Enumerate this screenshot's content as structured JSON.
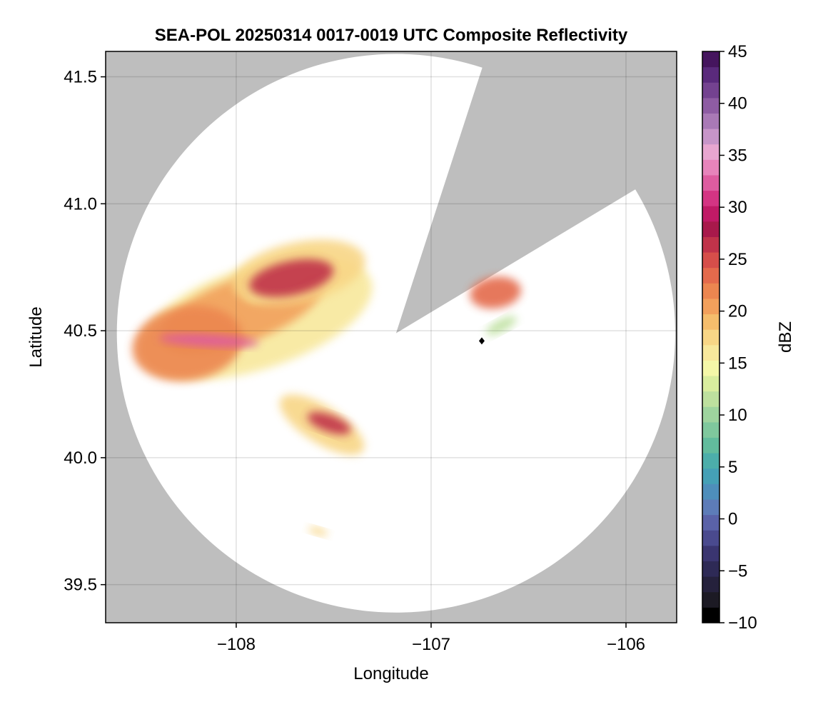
{
  "chart_data": {
    "type": "heatmap",
    "title": "SEA-POL 20250314 0017-0019 UTC Composite Reflectivity",
    "xlabel": "Longitude",
    "ylabel": "Latitude",
    "xlim": [
      -108.67,
      -105.74
    ],
    "ylim": [
      39.35,
      41.6
    ],
    "x_ticks": [
      -108,
      -107,
      -106
    ],
    "x_tick_labels": [
      "−108",
      "−107",
      "−106"
    ],
    "y_ticks": [
      39.5,
      40.0,
      40.5,
      41.0,
      41.5
    ],
    "y_tick_labels": [
      "39.5",
      "40.0",
      "40.5",
      "41.0",
      "41.5"
    ],
    "grid": true,
    "no_data_color": "#bebebe",
    "radar": {
      "center_lon": -107.18,
      "center_lat": 40.49,
      "range_radius_lat_deg": 1.1,
      "blocked_sectors_deg_clockwise_from_north": [
        [
          18,
          59
        ]
      ],
      "site_marker_lon": -106.74,
      "site_marker_lat": 40.46
    },
    "colorbar": {
      "label": "dBZ",
      "min": -10,
      "max": 45,
      "step": 2.5,
      "ticks": [
        -10,
        -5,
        0,
        5,
        10,
        15,
        20,
        25,
        30,
        35,
        40,
        45
      ],
      "tick_labels": [
        "−10",
        "−5",
        "0",
        "5",
        "10",
        "15",
        "20",
        "25",
        "30",
        "35",
        "40",
        "45"
      ],
      "colors": [
        "#000000",
        "#1c1a24",
        "#25213c",
        "#2e2a56",
        "#3a3570",
        "#4a4a8e",
        "#5a62a8",
        "#5d7cb8",
        "#4e8ebb",
        "#45a0b6",
        "#4caeaa",
        "#62bc9d",
        "#7fc89d",
        "#9ed49e",
        "#bde09e",
        "#d9ed9e",
        "#f4f7a8",
        "#f8e89c",
        "#f8d686",
        "#f5bd6c",
        "#f2a05c",
        "#ec8650",
        "#e46a4c",
        "#d64e4a",
        "#c0334a",
        "#a8194b",
        "#c01a66",
        "#d43483",
        "#de5ca0",
        "#e784bb",
        "#e8a6d0",
        "#c795c8",
        "#a979b6",
        "#8e5ca3",
        "#744290",
        "#5a2a7c",
        "#45155e"
      ]
    },
    "echo_cells": [
      {
        "id": "main-band",
        "lon": -107.9,
        "lat": 40.55,
        "max_dbz": 33
      },
      {
        "id": "north-core",
        "lon": -107.68,
        "lat": 40.73,
        "max_dbz": 27
      },
      {
        "id": "west-core",
        "lon": -108.25,
        "lat": 40.45,
        "max_dbz": 32
      },
      {
        "id": "south-arm",
        "lon": -107.56,
        "lat": 40.13,
        "max_dbz": 26
      },
      {
        "id": "east-cell",
        "lon": -106.67,
        "lat": 40.65,
        "max_dbz": 26
      },
      {
        "id": "east-small",
        "lon": -106.64,
        "lat": 40.52,
        "max_dbz": 12
      },
      {
        "id": "south-fragment",
        "lon": -107.58,
        "lat": 39.71,
        "max_dbz": 18
      }
    ]
  }
}
